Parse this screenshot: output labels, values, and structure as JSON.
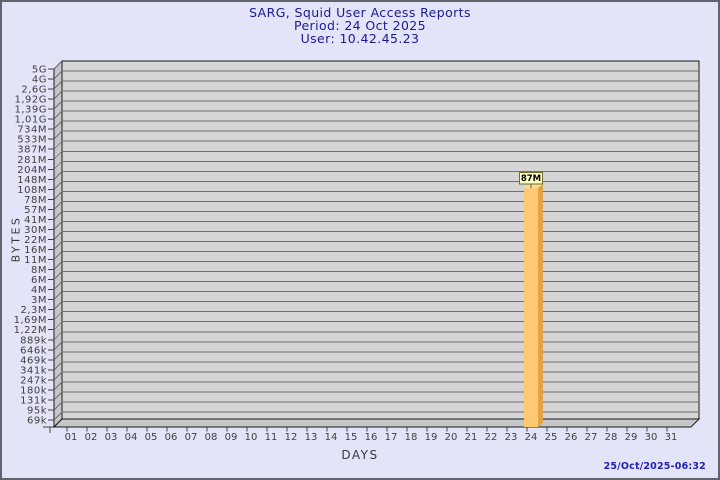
{
  "window": {
    "background": "#e4e4f8",
    "border_color": "#63636e"
  },
  "title": {
    "line1": "SARG, Squid User Access Reports",
    "line2": "Period: 24 Oct 2025",
    "line3": "User: 10.42.45.23",
    "color": "#1a1a96"
  },
  "chart_data": {
    "type": "bar",
    "title": "SARG, Squid User Access Reports",
    "subtitle": "Period: 24 Oct 2025",
    "user_line": "User: 10.42.45.23",
    "xlabel": "DAYS",
    "ylabel": "BYTES",
    "y_scale": "log",
    "grid": true,
    "y_tick_labels": [
      "5G",
      "4G",
      "2,6G",
      "1,92G",
      "1,39G",
      "1,01G",
      "734M",
      "533M",
      "387M",
      "281M",
      "204M",
      "148M",
      "108M",
      "78M",
      "57M",
      "41M",
      "30M",
      "22M",
      "16M",
      "11M",
      "8M",
      "6M",
      "4M",
      "3M",
      "2,3M",
      "1,69M",
      "1,22M",
      "889k",
      "646k",
      "469k",
      "341k",
      "247k",
      "180k",
      "131k",
      "95k",
      "69k"
    ],
    "y_tick_values": [
      5000000000,
      4000000000,
      2600000000,
      1920000000,
      1390000000,
      1010000000,
      734000000,
      533000000,
      387000000,
      281000000,
      204000000,
      148000000,
      108000000,
      78000000,
      57000000,
      41000000,
      30000000,
      22000000,
      16000000,
      11000000,
      8000000,
      6000000,
      4000000,
      3000000,
      2300000,
      1690000,
      1220000,
      889000,
      646000,
      469000,
      341000,
      247000,
      180000,
      131000,
      95000,
      69000
    ],
    "categories": [
      "01",
      "02",
      "03",
      "04",
      "05",
      "06",
      "07",
      "08",
      "09",
      "10",
      "11",
      "12",
      "13",
      "14",
      "15",
      "16",
      "17",
      "18",
      "19",
      "20",
      "21",
      "22",
      "23",
      "24",
      "25",
      "26",
      "27",
      "28",
      "29",
      "30",
      "31"
    ],
    "values": [
      0,
      0,
      0,
      0,
      0,
      0,
      0,
      0,
      0,
      0,
      0,
      0,
      0,
      0,
      0,
      0,
      0,
      0,
      0,
      0,
      0,
      0,
      0,
      87000000,
      0,
      0,
      0,
      0,
      0,
      0,
      0
    ],
    "bars": [
      {
        "day": "24",
        "day_index": 23,
        "value": 87000000,
        "label": "87M"
      }
    ],
    "colors": {
      "plot_bg": "#d5d5d6",
      "wall": "#c6c6ca",
      "grid": "#6f6f6f",
      "axis": "#1a1a1a",
      "tick_text": "#3f3f3f",
      "bar_front": "#ffc873",
      "bar_side": "#e0a348",
      "bar_top": "#f4de9e",
      "label_box_bg": "#ffffc8",
      "label_box_border": "#6e6e28",
      "label_text": "#000000",
      "connector": "#555555"
    }
  },
  "footer": {
    "timestamp": "25/Oct/2025-06:32",
    "color": "#2121b8"
  }
}
